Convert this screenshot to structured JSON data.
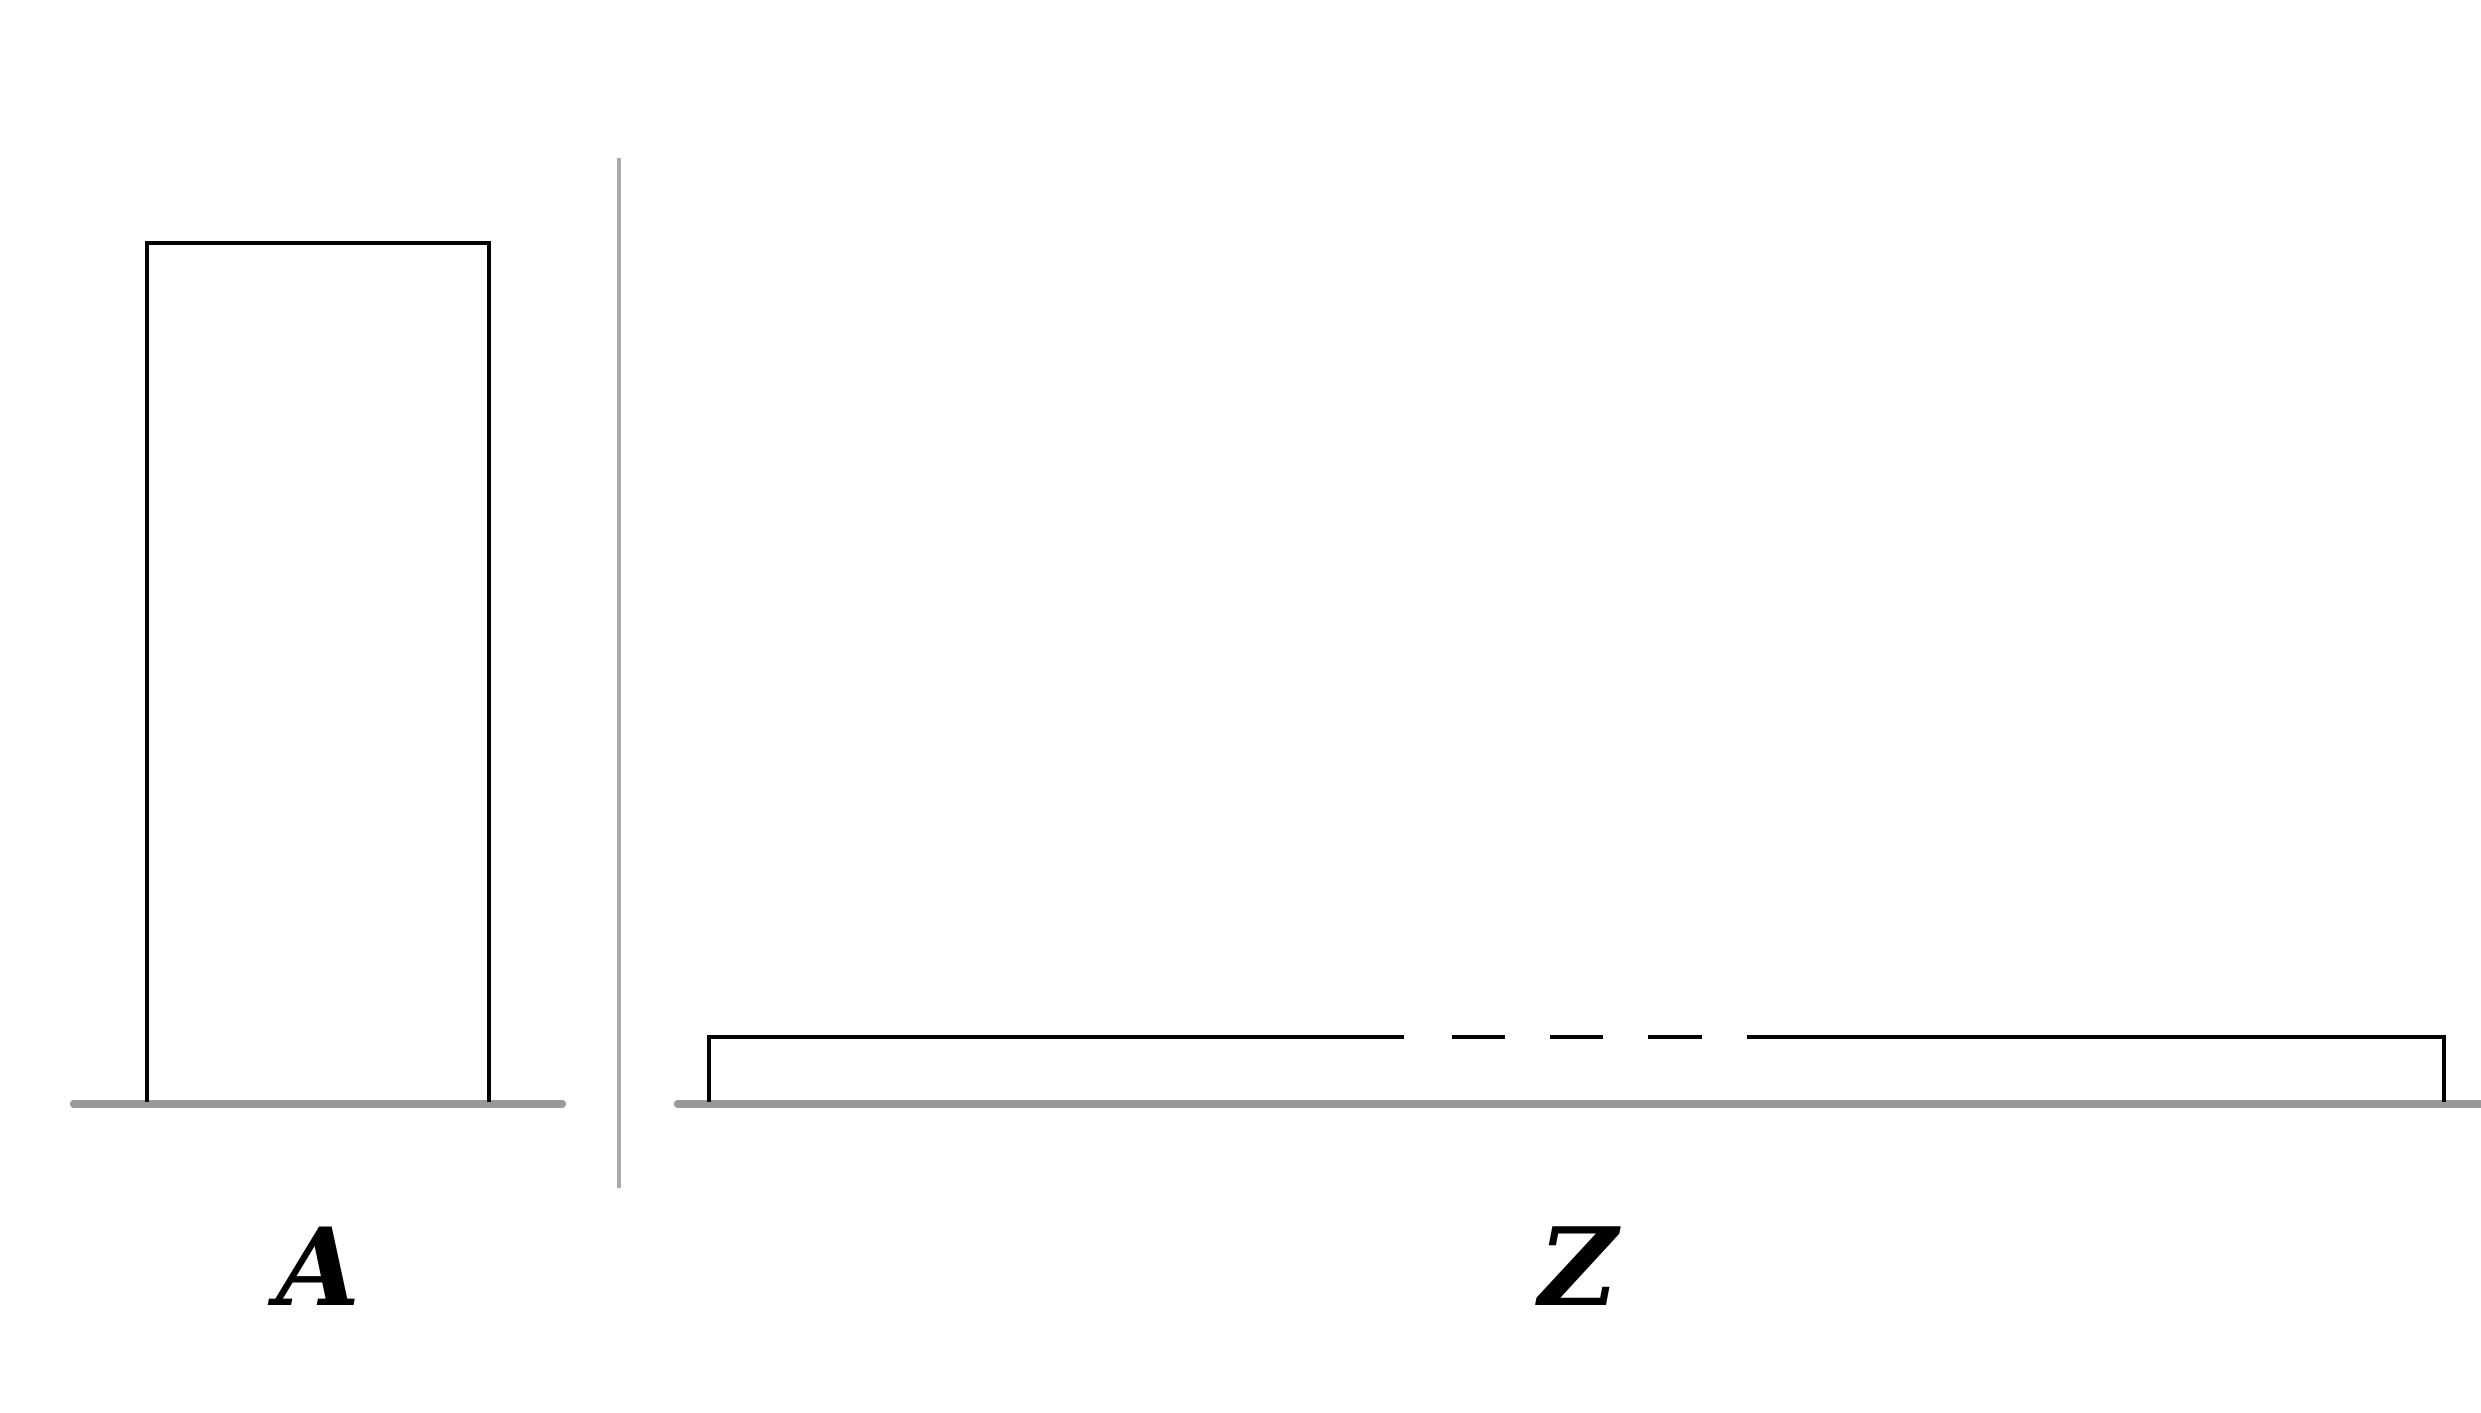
{
  "panels": [
    {
      "id": "a",
      "label": "A"
    },
    {
      "id": "z",
      "label": "Z"
    }
  ],
  "colors": {
    "outline": "#000000",
    "baseline": "#999999",
    "divider": "#aaaaaa",
    "background": "#ffffff"
  }
}
